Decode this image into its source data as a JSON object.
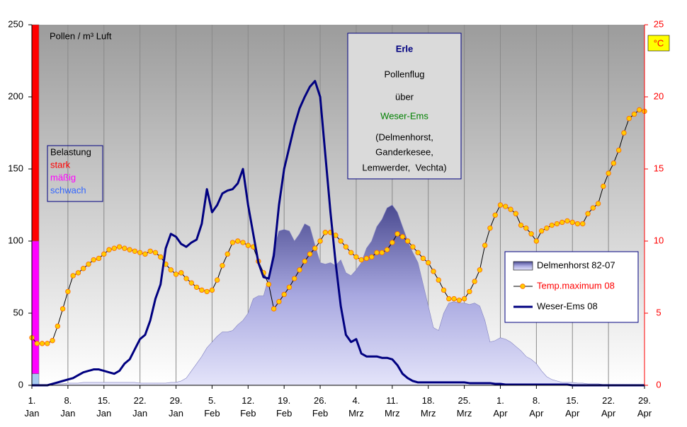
{
  "chart_data": {
    "type": "line",
    "title": "Erle",
    "subtitle_lines": [
      "Pollenflug",
      "über",
      "Weser-Ems",
      "(Delmenhorst,",
      "Ganderkesee,",
      "Lemwerder,  Vechta)"
    ],
    "y_label": "Pollen / m³ Luft",
    "y2_label": "°C",
    "xlim": [
      0,
      119
    ],
    "xticks": [
      {
        "value": 0,
        "label": "1.\nJan"
      },
      {
        "value": 7,
        "label": "8.\nJan"
      },
      {
        "value": 14,
        "label": "15.\nJan"
      },
      {
        "value": 21,
        "label": "22.\nJan"
      },
      {
        "value": 28,
        "label": "29.\nJan"
      },
      {
        "value": 35,
        "label": "5.\nFeb"
      },
      {
        "value": 42,
        "label": "12.\nFeb"
      },
      {
        "value": 49,
        "label": "19.\nFeb"
      },
      {
        "value": 56,
        "label": "26.\nFeb"
      },
      {
        "value": 63,
        "label": "4.\nMrz"
      },
      {
        "value": 70,
        "label": "11.\nMrz"
      },
      {
        "value": 77,
        "label": "18.\nMrz"
      },
      {
        "value": 84,
        "label": "25.\nMrz"
      },
      {
        "value": 91,
        "label": "1.\nApr"
      },
      {
        "value": 98,
        "label": "8.\nApr"
      },
      {
        "value": 105,
        "label": "15.\nApr"
      },
      {
        "value": 112,
        "label": "22.\nApr"
      },
      {
        "value": 119,
        "label": "29.\nApr"
      }
    ],
    "ylim": [
      0,
      250
    ],
    "yticks": [
      0,
      50,
      100,
      150,
      200,
      250
    ],
    "y2lim": [
      0,
      25
    ],
    "y2ticks": [
      0,
      5,
      10,
      15,
      20,
      25
    ],
    "grid": true,
    "belastung": {
      "title": "Belastung",
      "levels": [
        {
          "name": "stark",
          "color": "#ff0000",
          "label_color": "#ff0000",
          "from": 100,
          "to": 250
        },
        {
          "name": "mäßig",
          "color": "#ff00ff",
          "label_color": "#ff00ff",
          "from": 8,
          "to": 100
        },
        {
          "name": "schwach",
          "color": "#a6caf0",
          "label_color": "#3366ff",
          "from": 0,
          "to": 8
        }
      ]
    },
    "series": [
      {
        "name": "Delmenhorst 82-07",
        "kind": "area",
        "color": "#6b6bb5",
        "label_color": "#000000",
        "values": [
          0,
          0,
          0,
          0,
          0.5,
          1,
          1,
          1.5,
          1.5,
          1.5,
          2,
          2,
          2,
          2,
          2,
          2,
          2,
          2,
          2,
          2,
          2,
          1.5,
          1.5,
          1.5,
          1.5,
          1.5,
          1.5,
          2,
          2,
          3,
          5,
          10,
          15,
          20,
          26,
          30,
          34,
          37,
          37,
          38,
          42,
          45,
          50,
          60,
          62,
          62,
          75,
          95,
          107,
          108,
          107,
          100,
          105,
          112,
          110,
          97,
          85,
          84,
          85,
          83,
          87,
          78,
          76,
          80,
          85,
          95,
          100,
          110,
          115,
          123,
          125,
          120,
          110,
          100,
          92,
          85,
          70,
          55,
          40,
          38,
          50,
          57,
          58,
          57,
          57,
          56,
          57,
          55,
          45,
          30,
          31,
          33,
          32,
          30,
          27,
          24,
          20,
          18,
          15,
          10,
          6,
          4,
          3,
          2,
          2,
          2,
          1.5,
          1.5,
          1,
          1,
          1,
          0.5,
          0.5,
          0.5,
          0,
          0,
          0,
          0,
          0,
          0
        ]
      },
      {
        "name": "Temp.maximum 08",
        "kind": "line-markers",
        "axis": "y2",
        "color": "#000000",
        "marker_color": "#ffcc00",
        "label_color": "#ff0000",
        "values": [
          3.3,
          2.9,
          2.9,
          2.9,
          3.1,
          4.1,
          5.3,
          6.5,
          7.6,
          7.8,
          8.1,
          8.4,
          8.7,
          8.8,
          9.1,
          9.4,
          9.5,
          9.6,
          9.5,
          9.4,
          9.3,
          9.2,
          9.1,
          9.3,
          9.2,
          8.9,
          8.4,
          8.0,
          7.7,
          7.8,
          7.4,
          7.1,
          6.8,
          6.6,
          6.5,
          6.6,
          7.3,
          8.3,
          9.1,
          9.9,
          10.0,
          9.9,
          9.7,
          9.6,
          8.6,
          7.8,
          7.0,
          5.3,
          5.8,
          6.3,
          6.8,
          7.4,
          8.0,
          8.6,
          9.1,
          9.5,
          10.0,
          10.6,
          10.6,
          10.4,
          10.0,
          9.6,
          9.2,
          8.9,
          8.7,
          8.8,
          8.9,
          9.2,
          9.2,
          9.4,
          9.9,
          10.5,
          10.3,
          10.0,
          9.6,
          9.2,
          8.8,
          8.5,
          7.9,
          7.3,
          6.6,
          6.0,
          6.0,
          5.9,
          6.0,
          6.5,
          7.2,
          8.0,
          9.7,
          10.9,
          11.8,
          12.5,
          12.4,
          12.2,
          11.9,
          11.1,
          10.9,
          10.5,
          10.0,
          10.7,
          10.9,
          11.1,
          11.2,
          11.3,
          11.4,
          11.3,
          11.2,
          11.2,
          11.9,
          12.3,
          12.6,
          13.8,
          14.7,
          15.4,
          16.3,
          17.5,
          18.5,
          18.8,
          19.1,
          19.0
        ]
      },
      {
        "name": "Weser-Ems 08",
        "kind": "line",
        "color": "#000080",
        "label_color": "#000000",
        "values": [
          0,
          0,
          0,
          0,
          1,
          2,
          3,
          4,
          5,
          7,
          9,
          10,
          11,
          11,
          10,
          9,
          8,
          10,
          15,
          18,
          25,
          32,
          35,
          45,
          60,
          70,
          95,
          105,
          103,
          98,
          96,
          99,
          101,
          112,
          136,
          120,
          125,
          133,
          135,
          136,
          140,
          150,
          125,
          105,
          85,
          75,
          74,
          90,
          125,
          150,
          165,
          180,
          192,
          200,
          207,
          211,
          200,
          160,
          120,
          85,
          55,
          35,
          30,
          32,
          22,
          20,
          20,
          20,
          19,
          19,
          18,
          14,
          8,
          5,
          3,
          2,
          2,
          2,
          2,
          2,
          2,
          2,
          2,
          2,
          2,
          1.5,
          1.5,
          1.5,
          1.5,
          1.5,
          1,
          1,
          0.5,
          0.5,
          0.5,
          0.5,
          0.5,
          0.5,
          0.5,
          0.5,
          0.5,
          0.5,
          0.5,
          0.5,
          0.5,
          0,
          0,
          0,
          0,
          0,
          0,
          0,
          0,
          0,
          0,
          0,
          0,
          0,
          0,
          0
        ]
      }
    ]
  }
}
